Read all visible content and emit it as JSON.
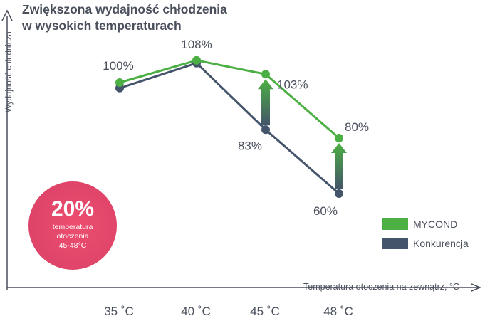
{
  "chart_data": {
    "type": "line",
    "title_lines": [
      "Zwiększona wydajność chłodzenia",
      "w wysokich temperaturach"
    ],
    "xlabel": "Temperatura otoczenia na zewnątrz, °C",
    "ylabel": "Wydajność chłodnicza",
    "categories": [
      "35 ˚C",
      "40 ˚C",
      "45 ˚C",
      "48 ˚C"
    ],
    "series": [
      {
        "name": "MYCOND",
        "color": "#4caf43",
        "values": [
          100,
          108,
          103,
          80
        ],
        "labels": [
          "100%",
          "108%",
          "103%",
          "80%"
        ]
      },
      {
        "name": "Konkurencja",
        "color": "#44546a",
        "values": [
          98,
          107,
          83,
          60
        ],
        "labels": [
          "",
          "",
          "83%",
          "60%"
        ]
      }
    ],
    "improvement_arrows": [
      2,
      3
    ],
    "ylim": [
      40,
      120
    ],
    "grid": false,
    "legend_position": "right"
  },
  "badge": {
    "value": "20%",
    "line1": "temperatura",
    "line2": "otoczenia",
    "line3": "45-48°C"
  },
  "colors": {
    "text": "#4a4f5c",
    "axis": "#4a4f5c",
    "badge": "#e2466a"
  }
}
